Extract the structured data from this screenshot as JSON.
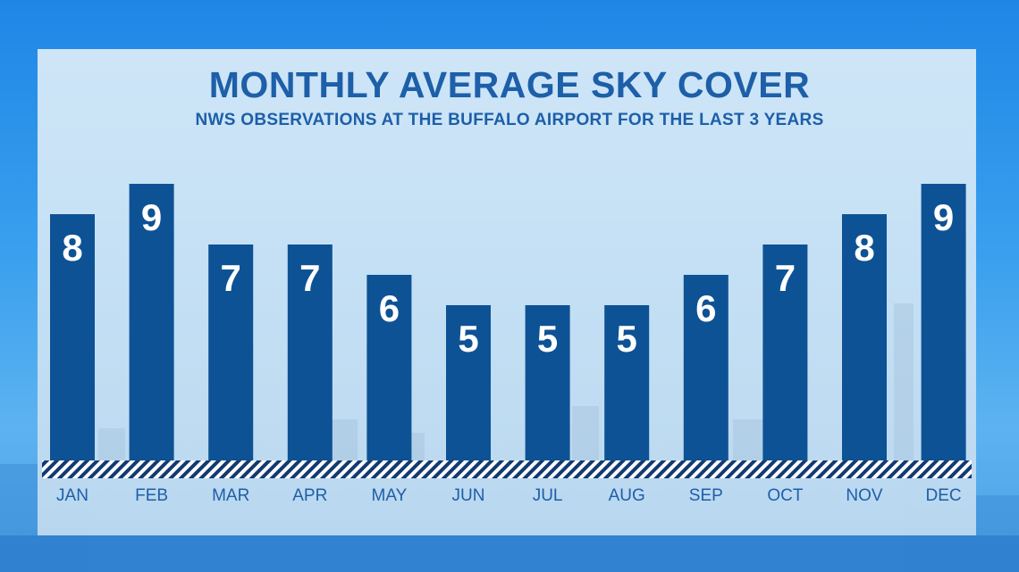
{
  "chart_data": {
    "type": "bar",
    "title": "MONTHLY AVERAGE SKY COVER",
    "subtitle": "NWS OBSERVATIONS AT THE BUFFALO AIRPORT FOR THE LAST 3 YEARS",
    "categories": [
      "JAN",
      "FEB",
      "MAR",
      "APR",
      "MAY",
      "JUN",
      "JUL",
      "AUG",
      "SEP",
      "OCT",
      "NOV",
      "DEC"
    ],
    "values": [
      8,
      9,
      7,
      7,
      6,
      5,
      5,
      5,
      6,
      7,
      8,
      9
    ],
    "ylim": [
      0,
      10
    ],
    "grid": false,
    "legend": "none"
  },
  "colors": {
    "bar": "#0d5294",
    "bar_label": "#ffffff",
    "title": "#1d5fa8",
    "tick_label": "#1d5fa8",
    "baseline_stripe_dark": "#123a72",
    "baseline_stripe_light": "#ffffff"
  }
}
